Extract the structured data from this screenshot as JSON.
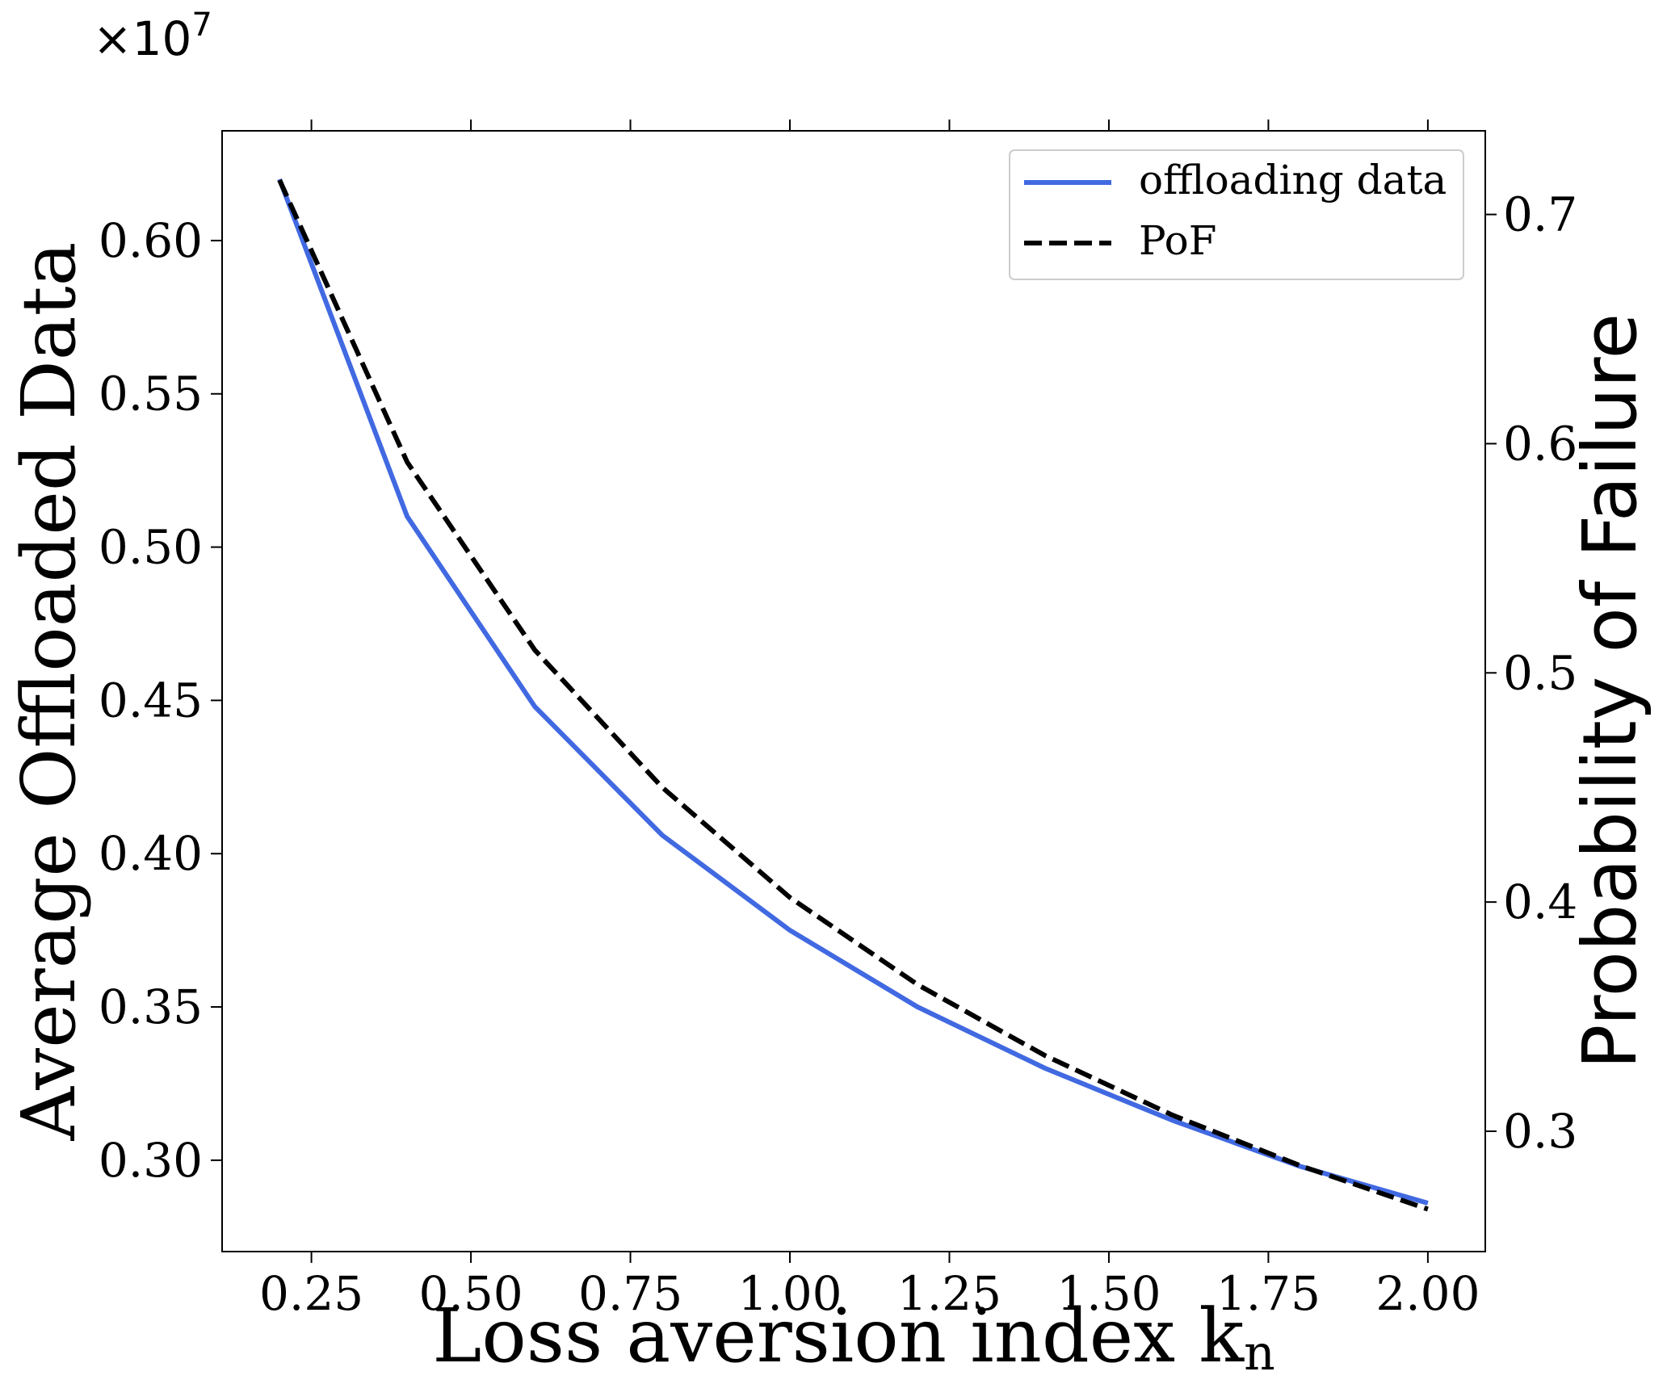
{
  "chart_data": {
    "type": "line",
    "x": [
      0.2,
      0.4,
      0.6,
      0.8,
      1.0,
      1.2,
      1.4,
      1.6,
      1.8,
      2.0
    ],
    "series": [
      {
        "name": "offloading data",
        "axis": "left",
        "color": "#4169e1",
        "style": "solid",
        "values": [
          0.62,
          0.51,
          0.448,
          0.406,
          0.375,
          0.35,
          0.33,
          0.313,
          0.298,
          0.286
        ]
      },
      {
        "name": "PoF",
        "axis": "right",
        "color": "#000000",
        "style": "dashed",
        "values": [
          0.715,
          0.592,
          0.51,
          0.45,
          0.402,
          0.364,
          0.333,
          0.307,
          0.285,
          0.266
        ]
      }
    ],
    "xlabel": "Loss aversion index k",
    "xlabel_subscript": "n",
    "ylabel_left": "Average Offloaded Data",
    "ylabel_right": "Probability of Failure",
    "offset_text_base": "×10",
    "offset_text_exponent": "7",
    "xlim": [
      0.11,
      2.09
    ],
    "ylim_left": [
      0.2702,
      0.6358
    ],
    "ylim_right": [
      0.2475,
      0.7365
    ],
    "xticks": [
      0.25,
      0.5,
      0.75,
      1.0,
      1.25,
      1.5,
      1.75,
      2.0
    ],
    "xtick_labels": [
      "0.25",
      "0.50",
      "0.75",
      "1.00",
      "1.25",
      "1.50",
      "1.75",
      "2.00"
    ],
    "yticks_left": [
      0.3,
      0.35,
      0.4,
      0.45,
      0.5,
      0.55,
      0.6
    ],
    "ytick_labels_left": [
      "0.30",
      "0.35",
      "0.40",
      "0.45",
      "0.50",
      "0.55",
      "0.60"
    ],
    "yticks_right": [
      0.3,
      0.4,
      0.5,
      0.6,
      0.7
    ],
    "ytick_labels_right": [
      "0.3",
      "0.4",
      "0.5",
      "0.6",
      "0.7"
    ],
    "legend_position": "upper right",
    "grid": false
  }
}
